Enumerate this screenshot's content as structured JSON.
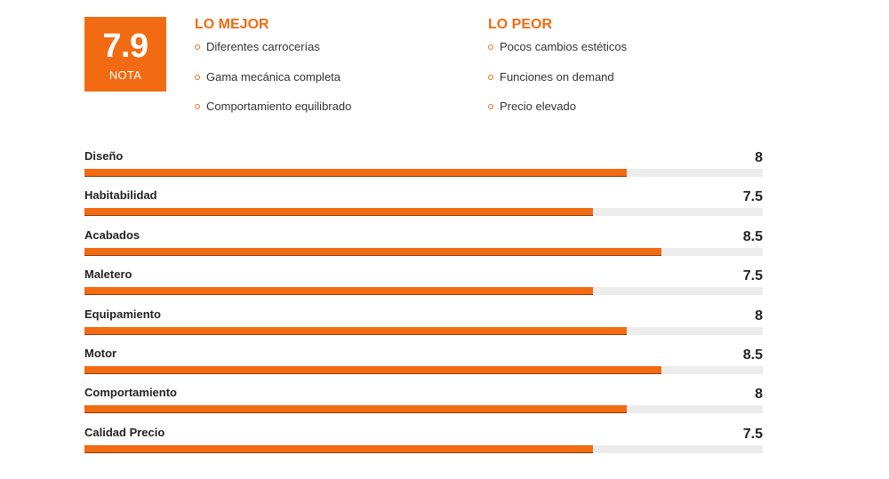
{
  "score": {
    "value": "7.9",
    "label": "NOTA"
  },
  "best": {
    "title": "LO MEJOR",
    "items": [
      "Diferentes carrocerías",
      "Gama mecánica completa",
      "Comportamiento equilibrado"
    ]
  },
  "worst": {
    "title": "LO PEOR",
    "items": [
      "Pocos cambios estéticos",
      "Funciones on demand",
      "Precio elevado"
    ]
  },
  "rating_scale_max": 10,
  "ratings": [
    {
      "label": "Diseño",
      "value": "8"
    },
    {
      "label": "Habitabilidad",
      "value": "7.5"
    },
    {
      "label": "Acabados",
      "value": "8.5"
    },
    {
      "label": "Maletero",
      "value": "7.5"
    },
    {
      "label": "Equipamiento",
      "value": "8"
    },
    {
      "label": "Motor",
      "value": "8.5"
    },
    {
      "label": "Comportamiento",
      "value": "8"
    },
    {
      "label": "Calidad Precio",
      "value": "7.5"
    }
  ],
  "colors": {
    "accent": "#f26b12",
    "track": "#ececec",
    "text": "#222222"
  }
}
